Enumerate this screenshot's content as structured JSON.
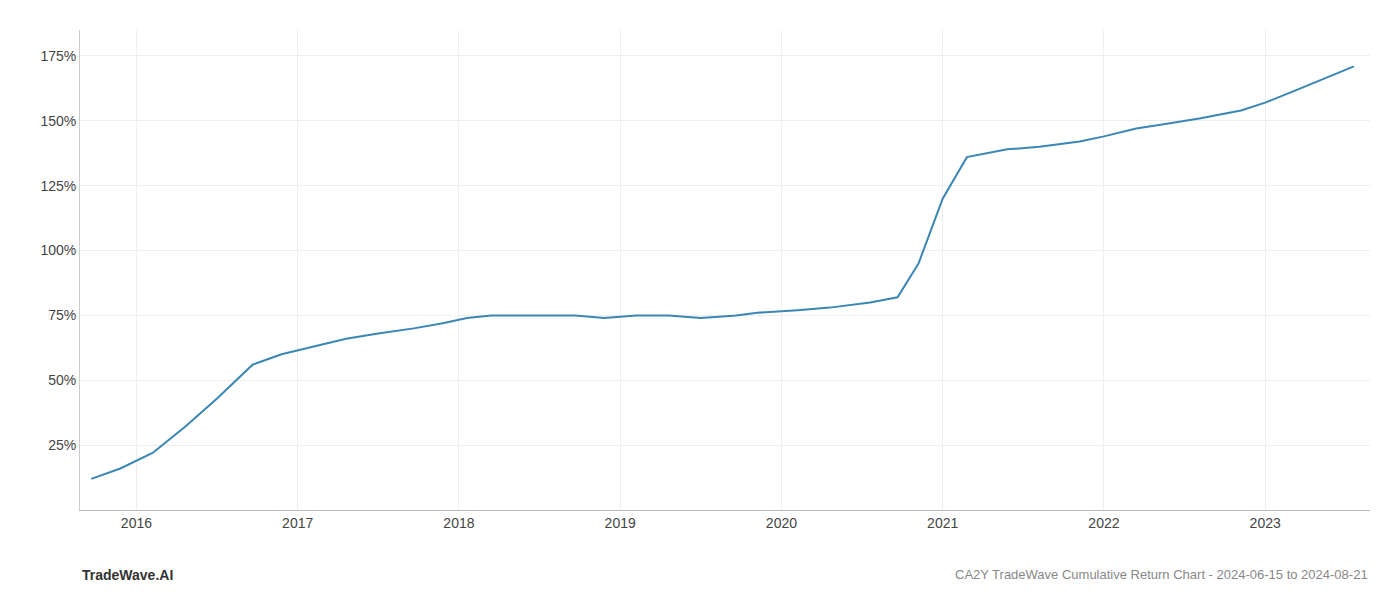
{
  "chart_data": {
    "type": "line",
    "title": "CA2Y TradeWave Cumulative Return Chart - 2024-06-15 to 2024-08-21",
    "annotations": [
      "TradeWave.AI"
    ],
    "color": "#3a86b4",
    "x": [
      2015.72,
      2015.9,
      2016.1,
      2016.3,
      2016.5,
      2016.72,
      2016.9,
      2017.1,
      2017.3,
      2017.5,
      2017.72,
      2017.9,
      2018.05,
      2018.2,
      2018.5,
      2018.72,
      2018.9,
      2019.1,
      2019.3,
      2019.5,
      2019.72,
      2019.85,
      2020.1,
      2020.3,
      2020.55,
      2020.72,
      2020.85,
      2021.0,
      2021.15,
      2021.4,
      2021.6,
      2021.85,
      2022.0,
      2022.2,
      2022.4,
      2022.6,
      2022.85,
      2023.0,
      2023.2,
      2023.55
    ],
    "values": [
      12,
      16,
      22,
      32,
      43,
      56,
      60,
      63,
      66,
      68,
      70,
      72,
      74,
      75,
      75,
      75,
      74,
      75,
      75,
      74,
      75,
      76,
      77,
      78,
      80,
      82,
      95,
      120,
      136,
      139,
      140,
      142,
      144,
      147,
      149,
      151,
      154,
      157,
      162,
      171
    ],
    "xlim": [
      2015.65,
      2023.65
    ],
    "xticks": [
      2016,
      2017,
      2018,
      2019,
      2020,
      2021,
      2022,
      2023
    ],
    "ylim": [
      0,
      185
    ],
    "yticks": [
      {
        "value": 25,
        "label": "25%"
      },
      {
        "value": 50,
        "label": "50%"
      },
      {
        "value": 75,
        "label": "75%"
      },
      {
        "value": 100,
        "label": "100%"
      },
      {
        "value": 125,
        "label": "125%"
      },
      {
        "value": 150,
        "label": "150%"
      },
      {
        "value": 175,
        "label": "175%"
      }
    ],
    "grid": true
  }
}
